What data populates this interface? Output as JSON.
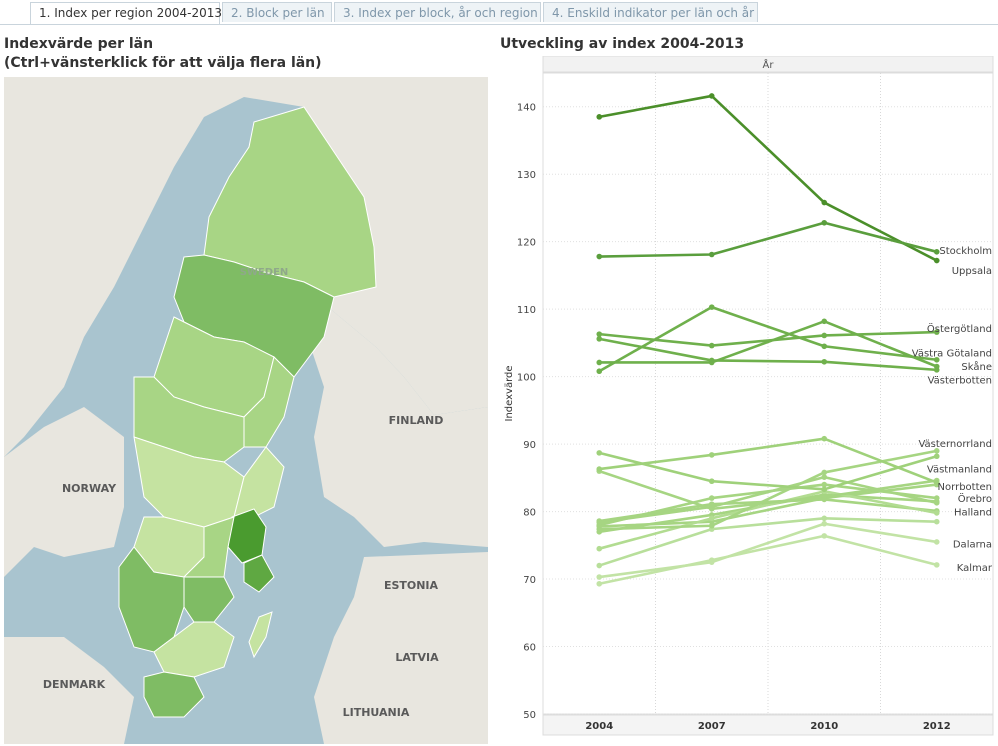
{
  "tabs": [
    {
      "label": "1. Index per region 2004-2013",
      "active": true
    },
    {
      "label": "2. Block per län",
      "active": false
    },
    {
      "label": "3. Index per block, år och region",
      "active": false
    },
    {
      "label": "4. Enskild indikator per län och år",
      "active": false
    }
  ],
  "map": {
    "title_line1": "Indexvärde per län",
    "title_line2": "(Ctrl+vänsterklick för att välja flera län)",
    "labels": {
      "sweden": "SWEDEN",
      "finland": "FINLAND",
      "norway": "NORWAY",
      "estonia": "ESTONIA",
      "latvia": "LATVIA",
      "denmark": "DENMARK",
      "lithuania": "LITHUANIA"
    },
    "colors": {
      "water": "#a9c4cf",
      "land": "#e8e6df",
      "light": "#c5e3a1",
      "mid": "#a8d585",
      "dark": "#7fbc64",
      "darkest": "#4a9b2f"
    }
  },
  "chart_data": {
    "type": "line",
    "title": "Utveckling av index 2004-2013",
    "header": "År",
    "ylabel": "Indexvärde",
    "x": [
      "2004",
      "2007",
      "2010",
      "2012"
    ],
    "ylim": [
      50,
      145
    ],
    "yticks": [
      50,
      60,
      70,
      80,
      90,
      100,
      110,
      120,
      130,
      140
    ],
    "grid": true,
    "series": [
      {
        "name": "Stockholm",
        "values": [
          117.8,
          118.1,
          122.8,
          118.5
        ],
        "color": "#5a9e3d"
      },
      {
        "name": "Uppsala",
        "values": [
          138.5,
          141.6,
          125.8,
          117.2
        ],
        "color": "#4b8f2a"
      },
      {
        "name": "Östergötland",
        "values": [
          100.8,
          110.3,
          104.5,
          102.5
        ],
        "color": "#6fb04c"
      },
      {
        "name": "Västra Götaland",
        "values": [
          106.3,
          104.6,
          106.1,
          106.6
        ],
        "color": "#6fb04c"
      },
      {
        "name": "Skåne",
        "values": [
          102.1,
          102.1,
          108.2,
          101.5
        ],
        "color": "#6fb04c"
      },
      {
        "name": "Västerbotten",
        "values": [
          105.6,
          102.4,
          102.2,
          101.0
        ],
        "color": "#6fb04c"
      },
      {
        "name": "Västernorrland",
        "values": [
          86.3,
          88.4,
          90.8,
          84.3
        ],
        "color": "#9fd17a"
      },
      {
        "name": "Västmanland",
        "values": [
          88.7,
          84.5,
          83.3,
          88.2
        ],
        "color": "#9fd17a"
      },
      {
        "name": "Norrbotten",
        "values": [
          77.4,
          77.9,
          85.8,
          89.0
        ],
        "color": "#a6d582"
      },
      {
        "name": "Örebro",
        "values": [
          86.0,
          80.4,
          82.2,
          84.6
        ],
        "color": "#a6d582"
      },
      {
        "name": "Halland",
        "values": [
          78.4,
          80.7,
          85.1,
          81.3
        ],
        "color": "#a6d582"
      },
      {
        "name": "Dalarna",
        "values": [
          74.5,
          79.0,
          83.0,
          79.8
        ],
        "color": "#b2dc91"
      },
      {
        "name": "Kalmar",
        "values": [
          69.3,
          72.8,
          76.4,
          72.1
        ],
        "color": "#c2e3a5"
      }
    ],
    "extra_lines": [
      {
        "values": [
          78.0,
          82.0,
          84.0,
          82.0
        ],
        "color": "#a6d582"
      },
      {
        "values": [
          77.0,
          79.5,
          82.5,
          81.5
        ],
        "color": "#a6d582"
      },
      {
        "values": [
          78.6,
          81.1,
          81.8,
          80.1
        ],
        "color": "#a6d582"
      },
      {
        "values": [
          72.0,
          77.4,
          79.0,
          78.5
        ],
        "color": "#b8df9b"
      },
      {
        "values": [
          70.3,
          72.5,
          78.2,
          75.5
        ],
        "color": "#c2e3a5"
      },
      {
        "values": [
          77.8,
          78.5,
          82.0,
          84.0
        ],
        "color": "#a6d582"
      }
    ],
    "right_labels": [
      {
        "text": "Stockholm",
        "y": 118.8
      },
      {
        "text": "Uppsala",
        "y": 115.8
      },
      {
        "text": "Östergötland",
        "y": 107.2
      },
      {
        "text": "Västra Götaland",
        "y": 103.6
      },
      {
        "text": "Skåne",
        "y": 101.6
      },
      {
        "text": "Västerbotten",
        "y": 99.6
      },
      {
        "text": "Västernorrland",
        "y": 90.2
      },
      {
        "text": "Västmanland",
        "y": 86.4
      },
      {
        "text": "Norrbotten",
        "y": 83.8
      },
      {
        "text": "Örebro",
        "y": 82.0
      },
      {
        "text": "Halland",
        "y": 80.0
      },
      {
        "text": "Dalarna",
        "y": 75.3
      },
      {
        "text": "Kalmar",
        "y": 71.8
      }
    ]
  }
}
